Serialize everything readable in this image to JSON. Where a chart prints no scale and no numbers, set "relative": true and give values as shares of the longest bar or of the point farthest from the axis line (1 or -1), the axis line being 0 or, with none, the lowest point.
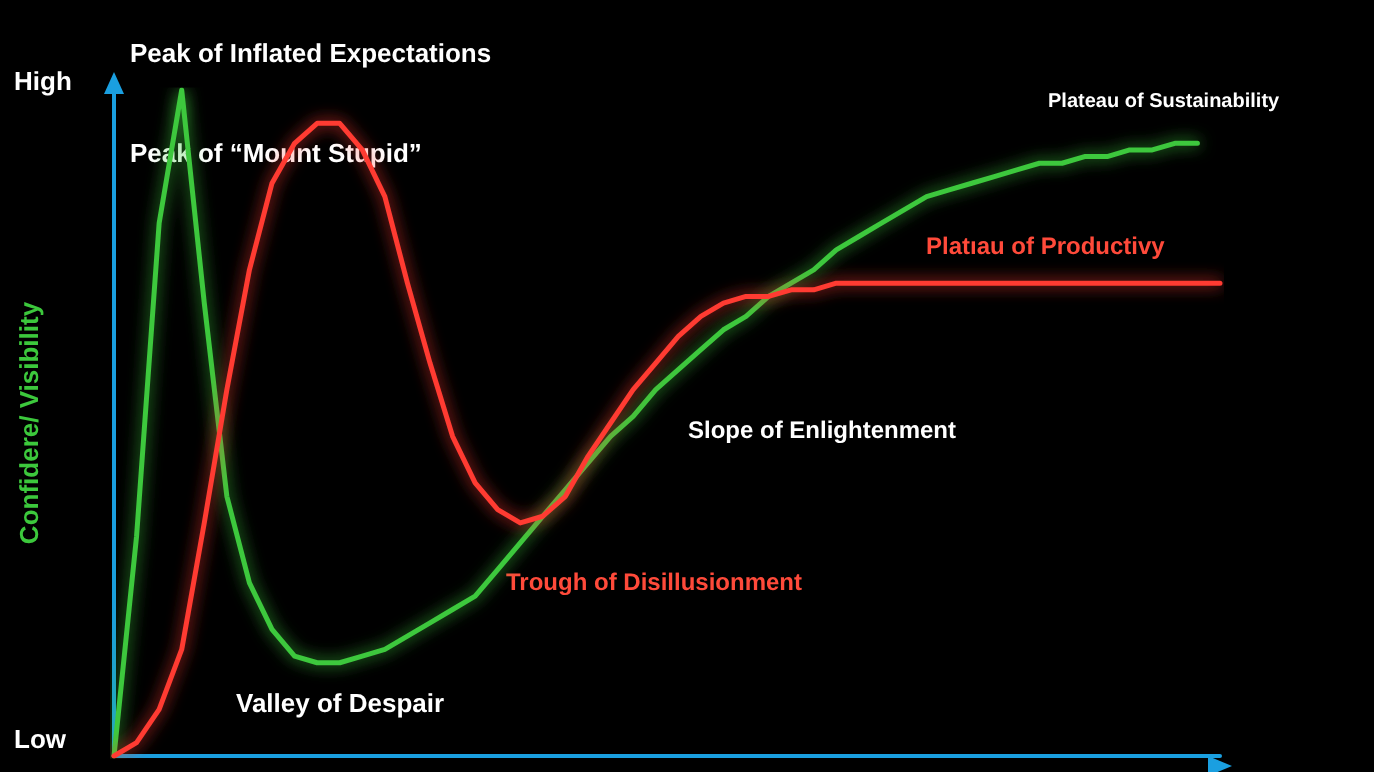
{
  "chart_data": {
    "type": "line",
    "relative": true,
    "ylabel": "Confidere/ Visibility",
    "grid": false,
    "marker": "none",
    "line_style": "solid",
    "categories": [
      null,
      null,
      null,
      null,
      null,
      null,
      null,
      null,
      null,
      null,
      null,
      null,
      null,
      null,
      null,
      null,
      null,
      null,
      null,
      null,
      null,
      null,
      null,
      null,
      null,
      null,
      null,
      null,
      null,
      null,
      null,
      null,
      null,
      null,
      null,
      null,
      null,
      null,
      null,
      null,
      null,
      null,
      null,
      null,
      null,
      null,
      null,
      null,
      null,
      null
    ],
    "annotations": [
      "High",
      "Low",
      "Peak of Inflated Expectations",
      "Peak of “Mount Stupid”",
      "Valley of Despair",
      "Trough of Disillusionment",
      "Slope of Enlightenment",
      "Platıau of Productivy",
      "Plateau of Sustainability"
    ],
    "series": [
      {
        "color": "#3cc83c",
        "values": [
          0,
          0.33,
          0.8,
          1.0,
          0.68,
          0.39,
          0.26,
          0.19,
          0.15,
          0.14,
          0.14,
          0.15,
          0.16,
          0.18,
          0.2,
          0.22,
          0.24,
          0.28,
          0.32,
          0.36,
          0.4,
          0.44,
          0.48,
          0.51,
          0.55,
          0.58,
          0.61,
          0.64,
          0.66,
          0.69,
          0.71,
          0.73,
          0.76,
          0.78,
          0.8,
          0.82,
          0.84,
          0.85,
          0.86,
          0.87,
          0.88,
          0.89,
          0.89,
          0.9,
          0.9,
          0.91,
          0.91,
          0.92,
          0.92,
          null
        ]
      },
      {
        "color": "#ff3a30",
        "values": [
          0,
          0.02,
          0.07,
          0.16,
          0.35,
          0.55,
          0.73,
          0.86,
          0.92,
          0.95,
          0.95,
          0.91,
          0.84,
          0.71,
          0.59,
          0.48,
          0.41,
          0.37,
          0.35,
          0.36,
          0.39,
          0.45,
          0.5,
          0.55,
          0.59,
          0.63,
          0.66,
          0.68,
          0.69,
          0.69,
          0.7,
          0.7,
          0.71,
          0.71,
          0.71,
          0.71,
          0.71,
          0.71,
          0.71,
          0.71,
          0.71,
          0.71,
          0.71,
          0.71,
          0.71,
          0.71,
          0.71,
          0.71,
          0.71,
          0.71
        ]
      }
    ]
  }
}
